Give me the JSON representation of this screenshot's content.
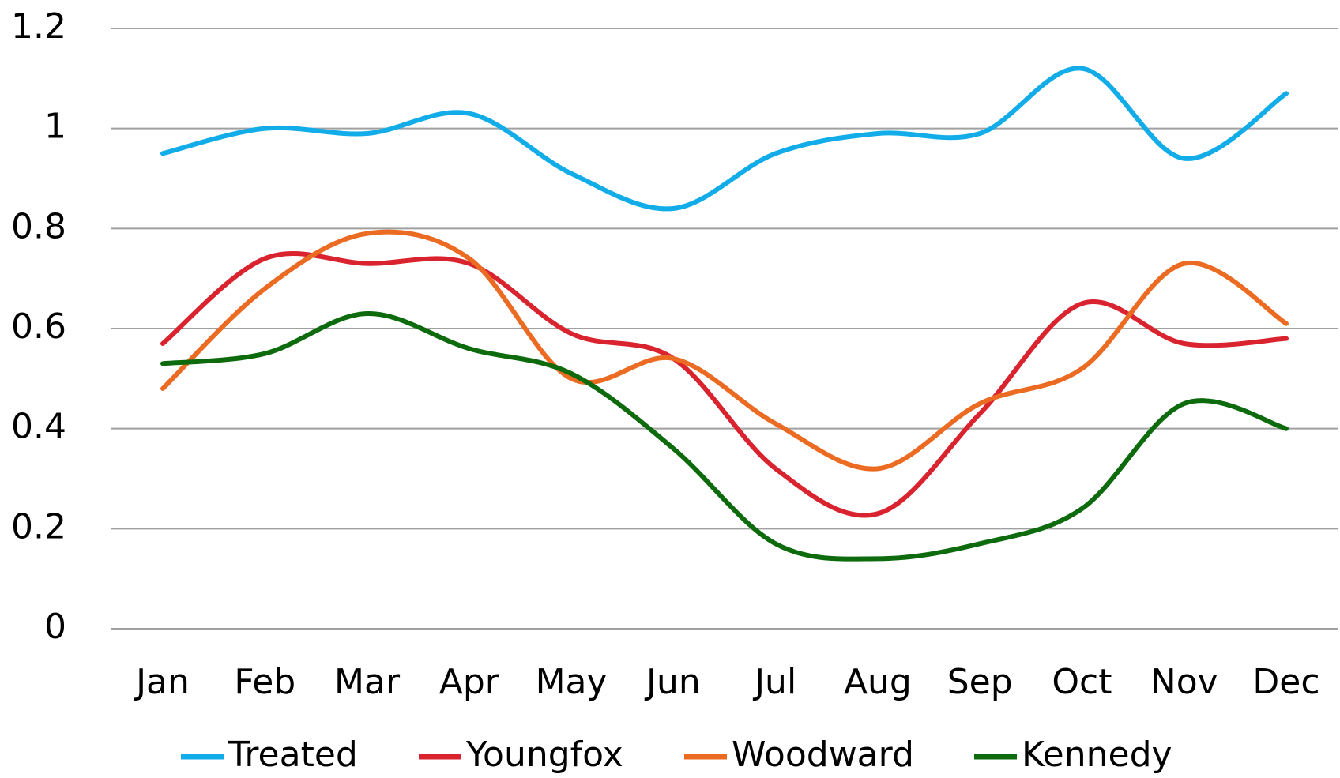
{
  "chart_data": {
    "type": "line",
    "categories": [
      "Jan",
      "Feb",
      "Mar",
      "Apr",
      "May",
      "Jun",
      "Jul",
      "Aug",
      "Sep",
      "Oct",
      "Nov",
      "Dec"
    ],
    "series": [
      {
        "name": "Treated",
        "color": "#12ade8",
        "values": [
          0.95,
          1.0,
          0.99,
          1.03,
          0.91,
          0.84,
          0.95,
          0.99,
          0.99,
          1.12,
          0.94,
          1.07
        ]
      },
      {
        "name": "Youngfox",
        "color": "#d9242f",
        "values": [
          0.57,
          0.74,
          0.73,
          0.73,
          0.59,
          0.54,
          0.32,
          0.23,
          0.43,
          0.65,
          0.57,
          0.58
        ]
      },
      {
        "name": "Woodward",
        "color": "#ec6b23",
        "values": [
          0.48,
          0.68,
          0.79,
          0.74,
          0.5,
          0.54,
          0.41,
          0.32,
          0.45,
          0.52,
          0.73,
          0.61
        ]
      },
      {
        "name": "Kennedy",
        "color": "#0d6b0d",
        "values": [
          0.53,
          0.55,
          0.63,
          0.56,
          0.51,
          0.36,
          0.17,
          0.14,
          0.17,
          0.24,
          0.45,
          0.4
        ]
      }
    ],
    "ylim": [
      0,
      1.2
    ],
    "yticks": [
      0,
      0.2,
      0.4,
      0.6,
      0.8,
      1,
      1.2
    ],
    "grid": true,
    "legend": "bottom",
    "smooth": true
  }
}
